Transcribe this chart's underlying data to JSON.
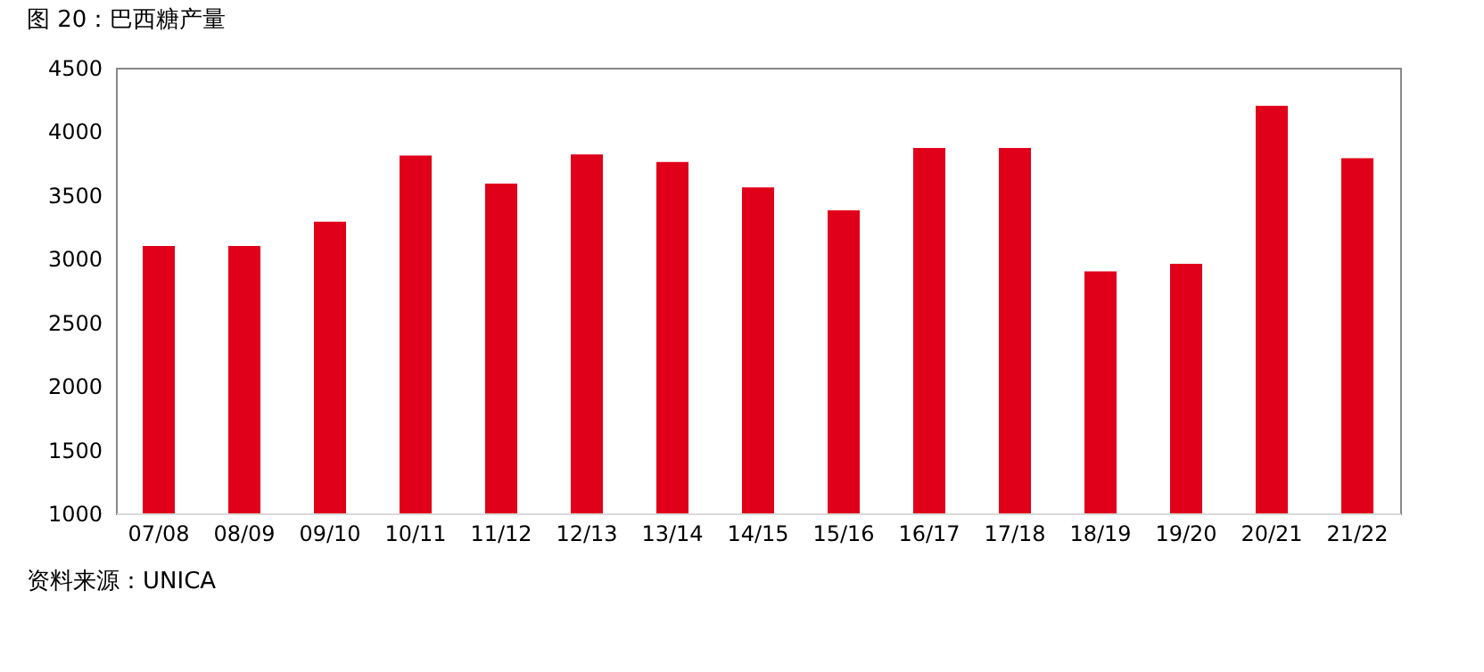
{
  "chart_data": {
    "type": "bar",
    "title": "图 20：巴西糖产量",
    "categories": [
      "07/08",
      "08/09",
      "09/10",
      "10/11",
      "11/12",
      "12/13",
      "13/14",
      "14/15",
      "15/16",
      "16/17",
      "17/18",
      "18/19",
      "19/20",
      "20/21",
      "21/22"
    ],
    "values": [
      3100,
      3100,
      3290,
      3810,
      3590,
      3820,
      3760,
      3560,
      3380,
      3870,
      3870,
      2900,
      2960,
      4200,
      3790
    ],
    "color": "#e0001a",
    "ylim": [
      1000,
      4500
    ],
    "yticks": [
      1000,
      1500,
      2000,
      2500,
      3000,
      3500,
      4000,
      4500
    ],
    "grid": false,
    "annotations": [
      "资料来源：UNICA"
    ]
  }
}
